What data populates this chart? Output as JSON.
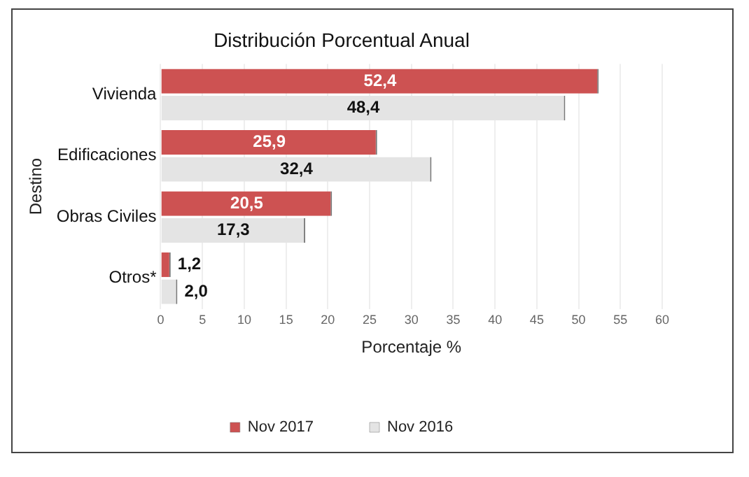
{
  "chart_data": {
    "type": "bar",
    "orientation": "horizontal",
    "title": "Distribución Porcentual Anual",
    "xlabel": "Porcentaje %",
    "ylabel": "Destino",
    "categories": [
      "Vivienda",
      "Edificaciones",
      "Obras Civiles",
      "Otros*"
    ],
    "series": [
      {
        "name": "Nov 2017",
        "color": "#cd5252",
        "values": [
          52.4,
          25.9,
          20.5,
          1.2
        ],
        "value_labels": [
          "52,4",
          "25,9",
          "20,5",
          "1,2"
        ]
      },
      {
        "name": "Nov 2016",
        "color": "#e4e4e4",
        "values": [
          48.4,
          32.4,
          17.3,
          2.0
        ],
        "value_labels": [
          "48,4",
          "32,4",
          "17,3",
          "2,0"
        ]
      }
    ],
    "xlim": [
      0,
      60
    ],
    "xticks": [
      0,
      5,
      10,
      15,
      20,
      25,
      30,
      35,
      40,
      45,
      50,
      55,
      60
    ],
    "grid": "x",
    "legend": "bottom"
  }
}
